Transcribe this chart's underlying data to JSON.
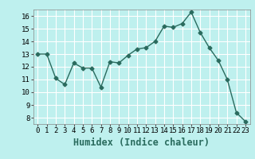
{
  "x": [
    0,
    1,
    2,
    3,
    4,
    5,
    6,
    7,
    8,
    9,
    10,
    11,
    12,
    13,
    14,
    15,
    16,
    17,
    18,
    19,
    20,
    21,
    22,
    23
  ],
  "y": [
    13.0,
    13.0,
    11.1,
    10.6,
    12.3,
    11.9,
    11.9,
    10.4,
    12.4,
    12.3,
    12.9,
    13.4,
    13.5,
    14.0,
    15.2,
    15.1,
    15.4,
    16.3,
    14.7,
    13.5,
    12.5,
    11.0,
    8.4,
    7.7
  ],
  "line_color": "#2a6b5e",
  "marker": "D",
  "marker_size": 2.5,
  "xlabel": "Humidex (Indice chaleur)",
  "ylim": [
    7.5,
    16.5
  ],
  "xlim": [
    -0.5,
    23.5
  ],
  "yticks": [
    8,
    9,
    10,
    11,
    12,
    13,
    14,
    15,
    16
  ],
  "xticks": [
    0,
    1,
    2,
    3,
    4,
    5,
    6,
    7,
    8,
    9,
    10,
    11,
    12,
    13,
    14,
    15,
    16,
    17,
    18,
    19,
    20,
    21,
    22,
    23
  ],
  "background_color": "#bef0ee",
  "grid_color": "#ffffff",
  "tick_label_fontsize": 6.5,
  "xlabel_fontsize": 8.5
}
